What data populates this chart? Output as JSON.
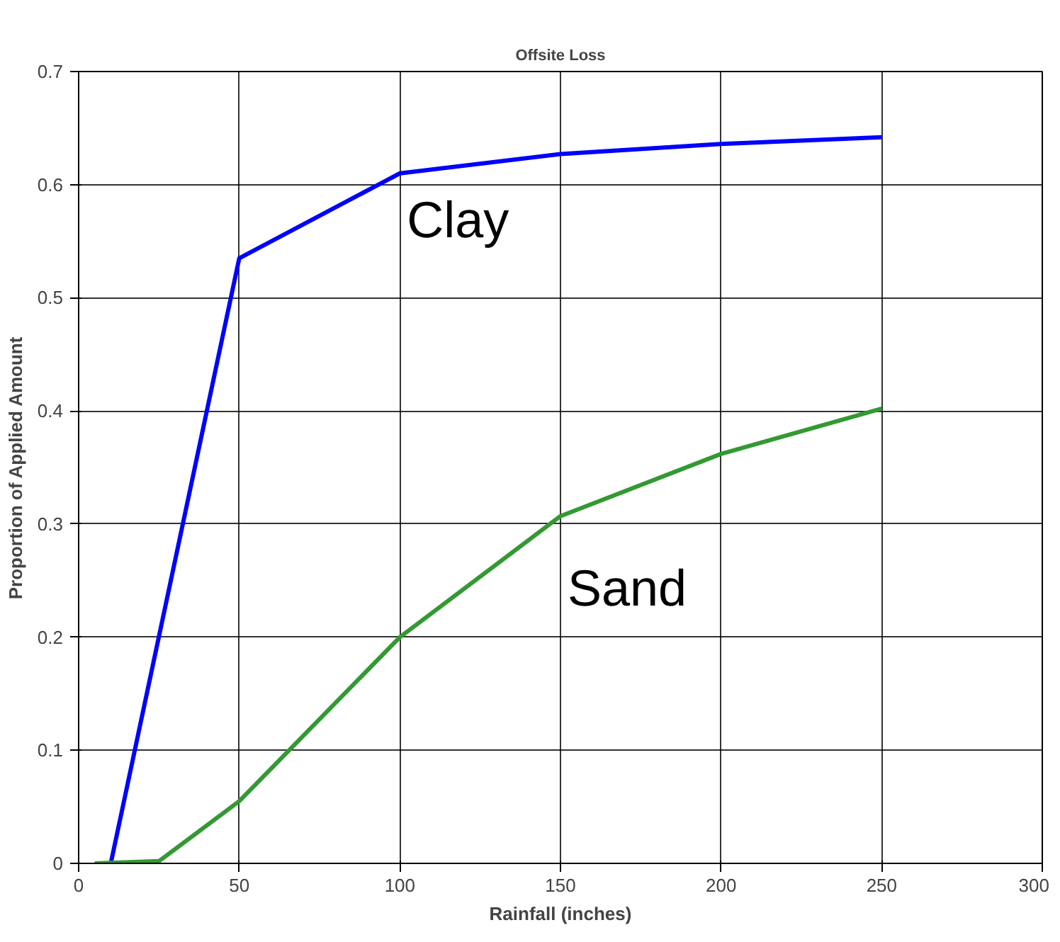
{
  "chart_data": {
    "type": "line",
    "title": "Offsite Loss",
    "xlabel": "Rainfall (inches)",
    "ylabel": "Proportion of Applied Amount",
    "xlim": [
      0,
      300
    ],
    "xticks": [
      0,
      50,
      100,
      150,
      200,
      250,
      300
    ],
    "ylim": [
      0,
      0.7
    ],
    "yticks": [
      0,
      0.1,
      0.2,
      0.3,
      0.4,
      0.5,
      0.6,
      0.7
    ],
    "grid": true,
    "legend": false,
    "series": [
      {
        "name": "Clay",
        "color": "#0000ff",
        "x": [
          10,
          50,
          100,
          150,
          200,
          250
        ],
        "values": [
          0,
          0.535,
          0.61,
          0.627,
          0.636,
          0.642
        ]
      },
      {
        "name": "Sand",
        "color": "#339933",
        "x": [
          5,
          25,
          50,
          100,
          150,
          200,
          250
        ],
        "values": [
          0,
          0.002,
          0.055,
          0.2,
          0.307,
          0.362,
          0.402
        ]
      }
    ]
  }
}
